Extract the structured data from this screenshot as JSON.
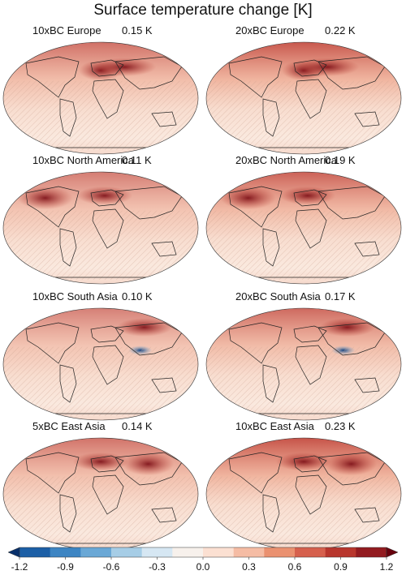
{
  "figure": {
    "title": "Surface temperature change [K]"
  },
  "panels": [
    {
      "title": "10xBC Europe",
      "value": "0.15 K",
      "intensity": 0.15,
      "hotspot": "europe"
    },
    {
      "title": "20xBC Europe",
      "value": "0.22 K",
      "intensity": 0.22,
      "hotspot": "europe"
    },
    {
      "title": "10xBC North America",
      "value": "0.11 K",
      "intensity": 0.11,
      "hotspot": "north-america"
    },
    {
      "title": "20xBC North America",
      "value": "0.19 K",
      "intensity": 0.19,
      "hotspot": "north-america"
    },
    {
      "title": "10xBC South Asia",
      "value": "0.10 K",
      "intensity": 0.1,
      "hotspot": "south-asia"
    },
    {
      "title": "20xBC South Asia",
      "value": "0.17 K",
      "intensity": 0.17,
      "hotspot": "south-asia"
    },
    {
      "title": "5xBC East Asia",
      "value": "0.14 K",
      "intensity": 0.14,
      "hotspot": "east-asia"
    },
    {
      "title": "10xBC East Asia",
      "value": "0.23 K",
      "intensity": 0.23,
      "hotspot": "east-asia"
    }
  ],
  "colorbar": {
    "ticks": [
      "-1.2",
      "-0.9",
      "-0.6",
      "-0.3",
      "0.0",
      "0.3",
      "0.6",
      "0.9",
      "1.2"
    ],
    "colors": [
      "#08306b",
      "#1c5fa6",
      "#3d85c3",
      "#6aa8d6",
      "#a6cde6",
      "#d6e7f3",
      "#f7f1ec",
      "#fbe0d2",
      "#f5bca4",
      "#ea9170",
      "#d6604d",
      "#b8362d",
      "#931b20",
      "#67000d"
    ]
  }
}
